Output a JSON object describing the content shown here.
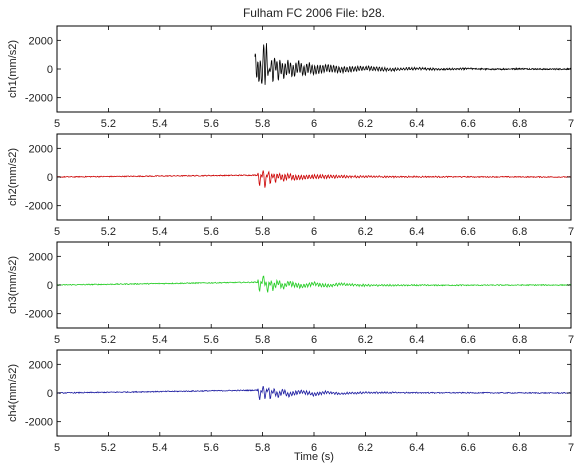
{
  "title": "Fulham FC 2006 File: b28.",
  "xlabel": "Time (s)",
  "chart_data": {
    "type": "line",
    "title": "Fulham FC 2006 File: b28.",
    "xlabel": "Time (s)",
    "xlim": [
      5,
      7
    ],
    "x_ticks": [
      5,
      5.2,
      5.4,
      5.6,
      5.8,
      6,
      6.2,
      6.4,
      6.6,
      6.8,
      7
    ],
    "x_tick_labels": [
      "5",
      "5.2",
      "5.4",
      "5.6",
      "5.8",
      "6",
      "6.2",
      "6.4",
      "6.6",
      "6.8",
      "7"
    ],
    "grid": false,
    "legend": "none",
    "panels": [
      {
        "ylabel": "ch1(mm/s2)",
        "ylim": [
          -3000,
          3000
        ],
        "y_ticks": [
          -2000,
          0,
          2000
        ],
        "y_tick_labels": [
          "-2000",
          "0",
          "2000"
        ],
        "color": "#000000",
        "signal_start": 5.77,
        "peak_abs": 2200,
        "x": [
          5.77,
          5.775,
          5.78,
          5.785,
          5.79,
          5.795,
          5.8,
          5.805,
          5.81,
          5.815,
          5.82,
          5.825,
          5.83,
          5.84,
          5.85,
          5.86,
          5.87,
          5.88,
          5.9,
          5.92,
          5.94,
          5.96,
          5.98,
          6.0,
          6.05,
          6.1,
          6.2,
          6.3,
          6.4,
          6.5,
          6.6,
          6.7,
          6.8,
          6.9,
          7.0
        ],
        "y": [
          1300,
          -500,
          900,
          -1800,
          1600,
          -2200,
          700,
          1800,
          -900,
          1900,
          300,
          -1200,
          800,
          -600,
          900,
          -500,
          400,
          -350,
          250,
          -300,
          350,
          -250,
          200,
          -150,
          120,
          -100,
          80,
          -60,
          50,
          -40,
          40,
          -30,
          25,
          -20,
          0
        ]
      },
      {
        "ylabel": "ch2(mm/s2)",
        "ylim": [
          -3000,
          3000
        ],
        "y_ticks": [
          -2000,
          0,
          2000
        ],
        "y_tick_labels": [
          "-2000",
          "0",
          "2000"
        ],
        "color": "#cc0000",
        "signal_start": 5.78,
        "peak_abs": 900,
        "x": [
          5.0,
          5.78,
          5.79,
          5.8,
          5.81,
          5.82,
          5.83,
          5.84,
          5.85,
          5.86,
          5.88,
          5.9,
          5.92,
          6.0,
          7.0
        ],
        "y": [
          0,
          200,
          -600,
          700,
          -900,
          600,
          -400,
          300,
          -300,
          200,
          -150,
          100,
          -80,
          40,
          0
        ]
      },
      {
        "ylabel": "ch3(mm/s2)",
        "ylim": [
          -3000,
          3000
        ],
        "y_ticks": [
          -2000,
          0,
          2000
        ],
        "y_tick_labels": [
          "-2000",
          "0",
          "2000"
        ],
        "color": "#22cc22",
        "signal_start": 5.78,
        "peak_abs": 800,
        "x": [
          5.0,
          5.78,
          5.79,
          5.8,
          5.81,
          5.82,
          5.83,
          5.84,
          5.86,
          5.88,
          5.9,
          5.95,
          6.0,
          6.05,
          6.1,
          6.2,
          7.0
        ],
        "y": [
          0,
          300,
          -400,
          800,
          300,
          -500,
          400,
          -300,
          300,
          -200,
          200,
          -150,
          150,
          -100,
          80,
          -40,
          0
        ]
      },
      {
        "ylabel": "ch4(mm/s2)",
        "ylim": [
          -3000,
          3000
        ],
        "y_ticks": [
          -2000,
          0,
          2000
        ],
        "y_tick_labels": [
          "-2000",
          "0",
          "2000"
        ],
        "color": "#1a1aa0",
        "signal_start": 5.78,
        "peak_abs": 700,
        "x": [
          5.0,
          5.78,
          5.79,
          5.8,
          5.81,
          5.82,
          5.83,
          5.84,
          5.86,
          5.88,
          5.9,
          5.95,
          6.0,
          6.05,
          6.1,
          6.2,
          7.0
        ],
        "y": [
          0,
          300,
          -500,
          700,
          -400,
          600,
          -400,
          300,
          -250,
          200,
          -200,
          150,
          -150,
          100,
          -80,
          40,
          0
        ]
      }
    ]
  }
}
